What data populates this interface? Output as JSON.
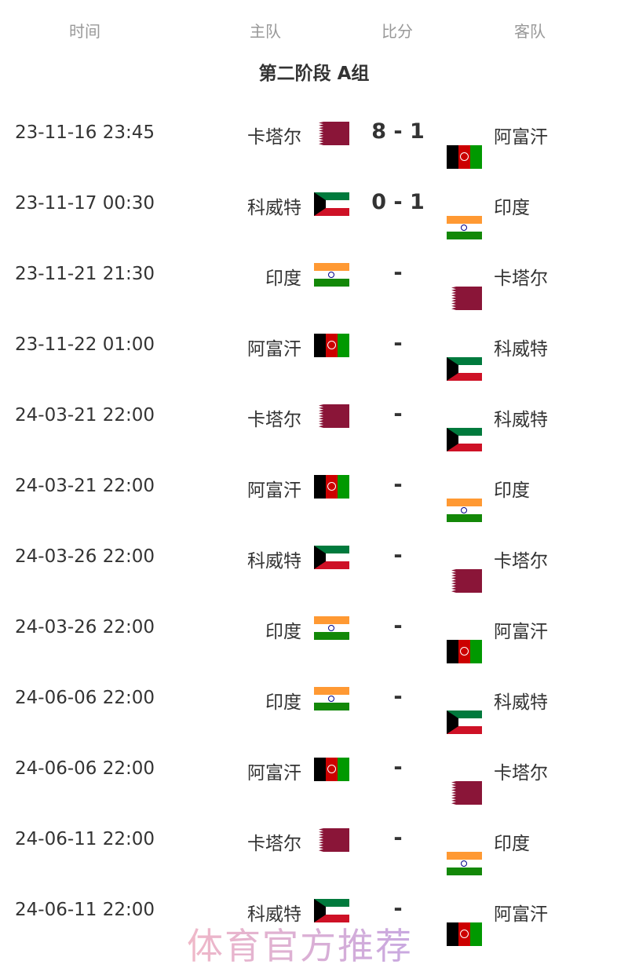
{
  "header": {
    "time": "时间",
    "home": "主队",
    "score": "比分",
    "away": "客队"
  },
  "group_title": "第二阶段 A组",
  "flags": {
    "卡塔尔": "qat",
    "阿富汗": "afg",
    "科威特": "kuw",
    "印度": "ind"
  },
  "matches": [
    {
      "time": "23-11-16 23:45",
      "home": "卡塔尔",
      "score": "8 - 1",
      "away": "阿富汗"
    },
    {
      "time": "23-11-17 00:30",
      "home": "科威特",
      "score": "0 - 1",
      "away": "印度"
    },
    {
      "time": "23-11-21 21:30",
      "home": "印度",
      "score": "-",
      "away": "卡塔尔"
    },
    {
      "time": "23-11-22 01:00",
      "home": "阿富汗",
      "score": "-",
      "away": "科威特"
    },
    {
      "time": "24-03-21 22:00",
      "home": "卡塔尔",
      "score": "-",
      "away": "科威特"
    },
    {
      "time": "24-03-21 22:00",
      "home": "阿富汗",
      "score": "-",
      "away": "印度"
    },
    {
      "time": "24-03-26 22:00",
      "home": "科威特",
      "score": "-",
      "away": "卡塔尔"
    },
    {
      "time": "24-03-26 22:00",
      "home": "印度",
      "score": "-",
      "away": "阿富汗"
    },
    {
      "time": "24-06-06 22:00",
      "home": "印度",
      "score": "-",
      "away": "科威特"
    },
    {
      "time": "24-06-06 22:00",
      "home": "阿富汗",
      "score": "-",
      "away": "卡塔尔"
    },
    {
      "time": "24-06-11 22:00",
      "home": "卡塔尔",
      "score": "-",
      "away": "印度"
    },
    {
      "time": "24-06-11 22:00",
      "home": "科威特",
      "score": "-",
      "away": "阿富汗"
    }
  ],
  "watermark": "体育官方推荐"
}
